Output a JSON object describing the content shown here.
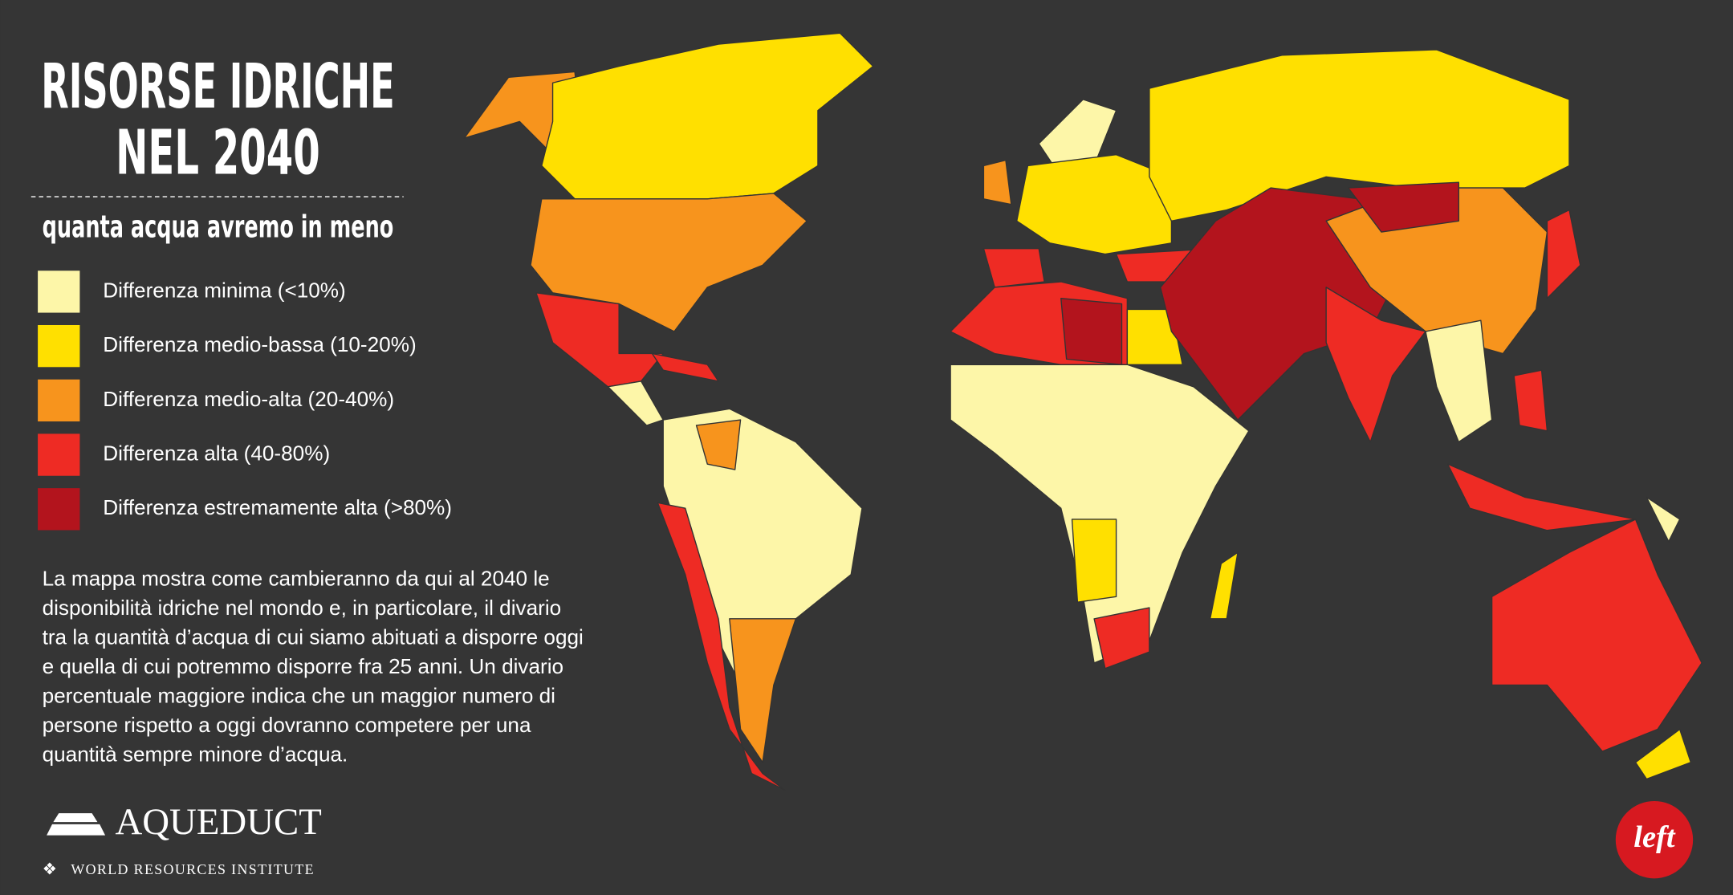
{
  "header": {
    "title_lines": [
      "RISORSE IDRICHE",
      "NEL 2040"
    ],
    "subtitle": "quanta acqua avremo in meno"
  },
  "legend": {
    "items": [
      {
        "label": "Differenza minima (<10%)",
        "color": "#fdf6a8"
      },
      {
        "label": "Differenza medio-bassa (10-20%)",
        "color": "#ffe000"
      },
      {
        "label": "Differenza medio-alta (20-40%)",
        "color": "#f7941d"
      },
      {
        "label": "Differenza alta (40-80%)",
        "color": "#ee2b24"
      },
      {
        "label": "Differenza estremamente alta (>80%)",
        "color": "#b3141d"
      }
    ]
  },
  "description": {
    "lines": [
      "La mappa mostra come cambieranno da qui al 2040 le",
      "disponibilità idriche  nel mondo e, in particolare, il divario",
      "tra la quantità d’acqua di cui siamo abituati a disporre oggi",
      "e quella di cui potremmo disporre fra 25 anni. Un divario",
      "percentuale maggiore indica che un maggior numero di",
      "persone rispetto a oggi dovranno competere per una",
      "quantità sempre minore d’acqua."
    ]
  },
  "footer": {
    "brand": "AQUEDUCT",
    "institute": "WORLD RESOURCES INSTITUTE",
    "logo": "left"
  }
}
